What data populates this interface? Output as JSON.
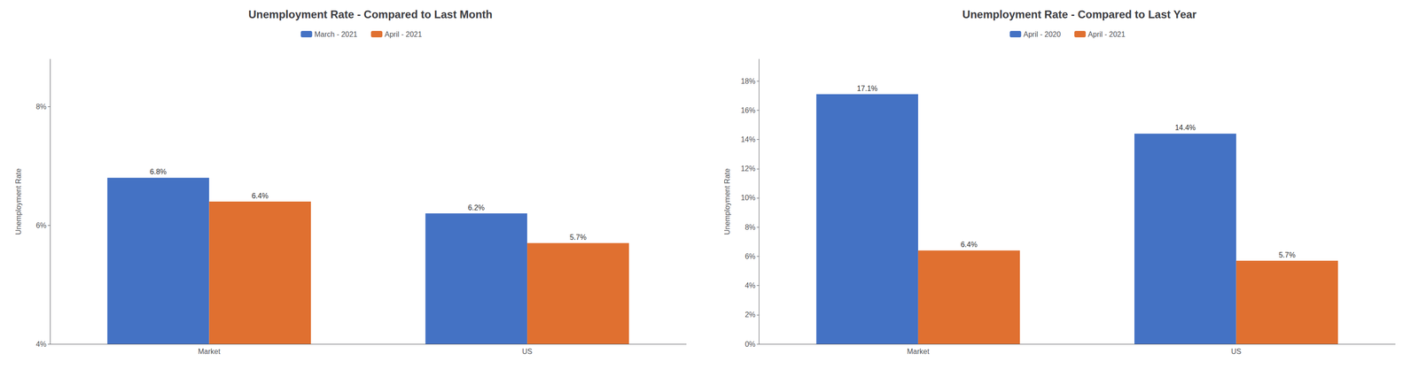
{
  "chart_data": [
    {
      "type": "bar",
      "title": "Unemployment Rate - Compared to Last Month",
      "categories": [
        "Market",
        "US"
      ],
      "series": [
        {
          "name": "March - 2021",
          "color": "#4472C4",
          "values": [
            6.8,
            6.2
          ],
          "value_labels": [
            "6.8%",
            "6.2%"
          ]
        },
        {
          "name": "April - 2021",
          "color": "#E07030",
          "values": [
            6.4,
            5.7
          ],
          "value_labels": [
            "6.4%",
            "5.7%"
          ]
        }
      ],
      "ylabel": "Unemployment Rate",
      "ylim": [
        4.0,
        8.8
      ],
      "yticks": [
        {
          "value": 4,
          "label": "4%"
        },
        {
          "value": 6,
          "label": "6%"
        },
        {
          "value": 8,
          "label": "8%"
        }
      ],
      "grid": false,
      "legend": "top",
      "data_labels": true
    },
    {
      "type": "bar",
      "title": "Unemployment Rate - Compared to Last Year",
      "categories": [
        "Market",
        "US"
      ],
      "series": [
        {
          "name": "April - 2020",
          "color": "#4472C4",
          "values": [
            17.1,
            14.4
          ],
          "value_labels": [
            "17.1%",
            "14.4%"
          ]
        },
        {
          "name": "April - 2021",
          "color": "#E07030",
          "values": [
            6.4,
            5.7
          ],
          "value_labels": [
            "6.4%",
            "5.7%"
          ]
        }
      ],
      "ylabel": "Unemployment Rate",
      "ylim": [
        0.0,
        19.5
      ],
      "yticks": [
        {
          "value": 0,
          "label": "0%"
        },
        {
          "value": 2,
          "label": "2%"
        },
        {
          "value": 4,
          "label": "4%"
        },
        {
          "value": 6,
          "label": "6%"
        },
        {
          "value": 8,
          "label": "8%"
        },
        {
          "value": 10,
          "label": "10%"
        },
        {
          "value": 12,
          "label": "12%"
        },
        {
          "value": 14,
          "label": "14%"
        },
        {
          "value": 16,
          "label": "16%"
        },
        {
          "value": 18,
          "label": "18%"
        }
      ],
      "grid": false,
      "legend": "top",
      "data_labels": true
    }
  ]
}
